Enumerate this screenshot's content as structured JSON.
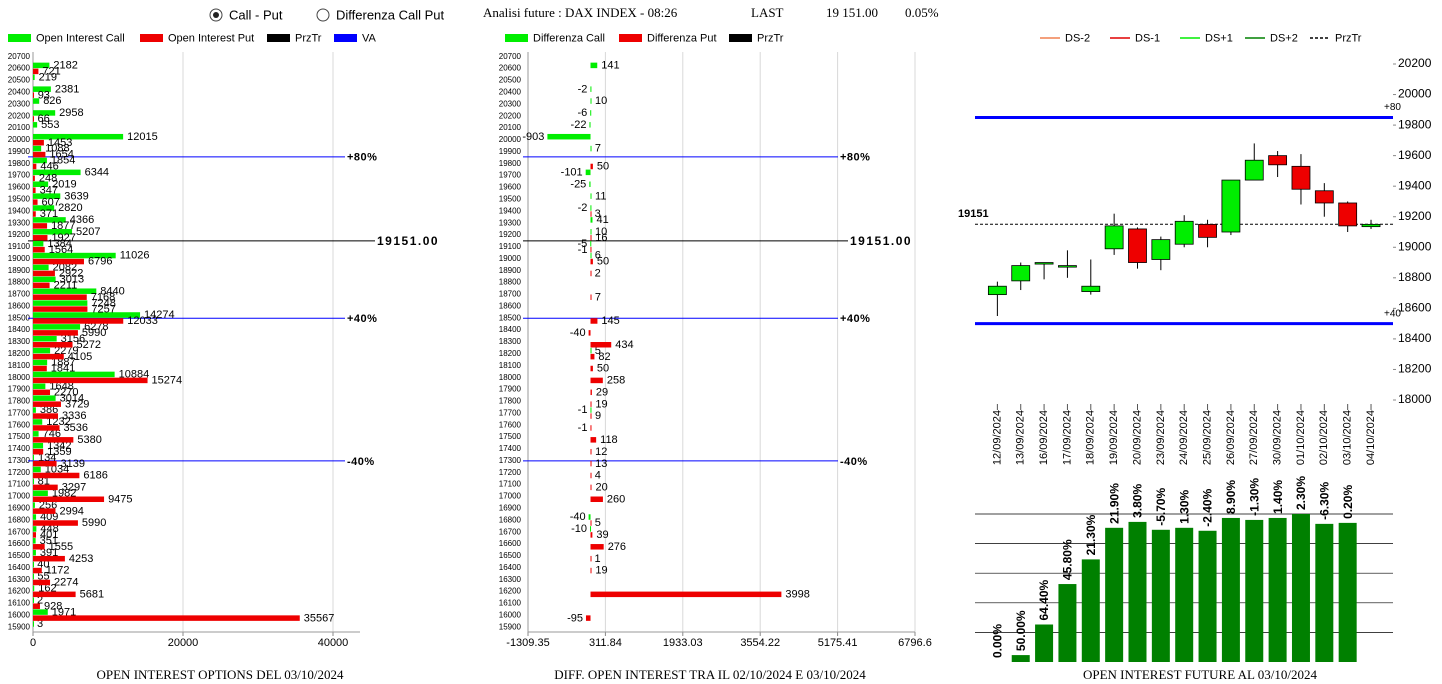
{
  "header": {
    "radio_options": [
      {
        "label": "Call - Put",
        "selected": true
      },
      {
        "label": "Differenza Call Put",
        "selected": false
      }
    ],
    "title": "Analisi future : DAX INDEX - 08:26",
    "last_label": "LAST",
    "last_value": "19 151.00",
    "change": "0.05%"
  },
  "chart_data": [
    {
      "type": "hbar",
      "title": "OPEN INTEREST OPTIONS DEL 03/10/2024",
      "categories": [
        20700,
        20600,
        20500,
        20400,
        20300,
        20200,
        20100,
        20000,
        19900,
        19800,
        19700,
        19600,
        19500,
        19400,
        19300,
        19200,
        19100,
        19000,
        18900,
        18800,
        18700,
        18600,
        18500,
        18400,
        18300,
        18200,
        18100,
        18000,
        17900,
        17800,
        17700,
        17600,
        17500,
        17400,
        17300,
        17200,
        17100,
        17000,
        16900,
        16800,
        16700,
        16600,
        16500,
        16400,
        16300,
        16200,
        16100,
        16000,
        15900
      ],
      "series": [
        {
          "name": "Open Interest Call",
          "color": "#00ee00",
          "values": [
            null,
            2182,
            219,
            2381,
            826,
            2958,
            553,
            12015,
            1088,
            1854,
            6344,
            2019,
            3639,
            2820,
            4366,
            5207,
            1384,
            11026,
            2082,
            3013,
            8440,
            7248,
            14274,
            6278,
            3156,
            2279,
            1887,
            10884,
            1648,
            3014,
            386,
            1232,
            746,
            1342,
            134,
            1034,
            81,
            1982,
            256,
            409,
            448,
            351,
            391,
            40,
            55,
            162,
            2,
            1971,
            3
          ]
        },
        {
          "name": "Open Interest Put",
          "color": "#ee0000",
          "values": [
            null,
            721,
            null,
            93,
            null,
            66,
            null,
            1453,
            1654,
            446,
            248,
            347,
            607,
            371,
            1877,
            1927,
            1564,
            6796,
            2922,
            2211,
            7168,
            7257,
            12033,
            5990,
            5272,
            4105,
            1841,
            15274,
            2270,
            3729,
            3336,
            3536,
            5380,
            1359,
            3139,
            6186,
            3297,
            9475,
            2994,
            5990,
            401,
            1555,
            4253,
            1172,
            2274,
            5681,
            928,
            35567,
            null
          ]
        }
      ],
      "legend_extra": [
        {
          "name": "PrzTr",
          "color": "#000000"
        },
        {
          "name": "VA",
          "color": "#0000ff"
        }
      ],
      "xlim": [
        0,
        43600
      ],
      "xticks": [
        0,
        20000,
        40000
      ],
      "ylim": [
        20740,
        15860
      ],
      "reference_lines": [
        {
          "value": 19858,
          "label": "+80%",
          "color": "#0000ff"
        },
        {
          "value": 19151,
          "label": "19151.00",
          "color": "#000000"
        },
        {
          "value": 18500,
          "label": "+40%",
          "color": "#0000ff"
        },
        {
          "value": 17300,
          "label": "-40%",
          "color": "#0000ff"
        }
      ]
    },
    {
      "type": "hbar",
      "title": "DIFF. OPEN INTEREST TRA IL 02/10/2024 E 03/10/2024",
      "categories": [
        20700,
        20600,
        20500,
        20400,
        20300,
        20200,
        20100,
        20000,
        19900,
        19800,
        19700,
        19600,
        19500,
        19400,
        19300,
        19200,
        19100,
        19000,
        18900,
        18800,
        18700,
        18600,
        18500,
        18400,
        18300,
        18200,
        18100,
        18000,
        17900,
        17800,
        17700,
        17600,
        17500,
        17400,
        17300,
        17200,
        17100,
        17000,
        16900,
        16800,
        16700,
        16600,
        16500,
        16400,
        16300,
        16200,
        16100,
        16000,
        15900
      ],
      "series": [
        {
          "name": "Differenza Call",
          "color": "#00ee00",
          "values": [
            null,
            141,
            null,
            -2,
            10,
            -6,
            -22,
            -903,
            7,
            null,
            -101,
            -25,
            11,
            -2,
            41,
            10,
            -5,
            6,
            null,
            null,
            null,
            null,
            null,
            null,
            null,
            5,
            null,
            null,
            null,
            null,
            -1,
            null,
            null,
            null,
            null,
            null,
            null,
            null,
            null,
            -40,
            -10,
            null,
            null,
            null,
            null,
            null,
            null,
            null,
            null
          ]
        },
        {
          "name": "Differenza Put",
          "color": "#ee0000",
          "values": [
            null,
            null,
            null,
            null,
            null,
            null,
            null,
            null,
            null,
            50,
            null,
            null,
            null,
            3,
            null,
            16,
            -1,
            50,
            2,
            null,
            7,
            null,
            145,
            -40,
            434,
            82,
            50,
            258,
            29,
            19,
            9,
            -1,
            118,
            12,
            13,
            4,
            20,
            260,
            null,
            5,
            39,
            276,
            1,
            19,
            null,
            3998,
            null,
            -95,
            null
          ]
        }
      ],
      "legend_extra": [
        {
          "name": "PrzTr",
          "color": "#000000"
        }
      ],
      "xlim": [
        -1309.35,
        6796.6
      ],
      "xticks": [
        -1309.35,
        311.84,
        1933.03,
        3554.22,
        5175.41,
        6796.6
      ],
      "ylim": [
        20740,
        15860
      ],
      "reference_lines": [
        {
          "value": 19858,
          "label": "+80%",
          "color": "#0000ff"
        },
        {
          "value": 19151,
          "label": "19151.00",
          "color": "#000000"
        },
        {
          "value": 18500,
          "label": "+40%",
          "color": "#0000ff"
        },
        {
          "value": 17300,
          "label": "-40%",
          "color": "#0000ff"
        }
      ]
    },
    {
      "type": "candlestick",
      "categories": [
        "12/09/2024",
        "13/09/2024",
        "16/09/2024",
        "17/09/2024",
        "18/09/2024",
        "19/09/2024",
        "20/09/2024",
        "23/09/2024",
        "24/09/2024",
        "25/09/2024",
        "26/09/2024",
        "27/09/2024",
        "30/09/2024",
        "01/10/2024",
        "02/10/2024",
        "03/10/2024",
        "04/10/2024"
      ],
      "open": [
        18690,
        18780,
        18890,
        18870,
        18710,
        18990,
        19120,
        18920,
        19020,
        19150,
        19100,
        19440,
        19600,
        19530,
        19370,
        19290,
        19135
      ],
      "high": [
        18775,
        18900,
        18900,
        18980,
        18920,
        19220,
        19130,
        19070,
        19210,
        19180,
        19440,
        19680,
        19630,
        19610,
        19420,
        19300,
        19180
      ],
      "low": [
        18550,
        18720,
        18790,
        18800,
        18690,
        18950,
        18860,
        18850,
        19000,
        19000,
        19080,
        19460,
        19460,
        19280,
        19200,
        19100,
        19120
      ],
      "close": [
        18745,
        18880,
        18900,
        18880,
        18745,
        19140,
        18900,
        19050,
        19170,
        19065,
        19440,
        19570,
        19540,
        19380,
        19290,
        19140,
        19150
      ],
      "up_color": "#00ee00",
      "down_color": "#ee0000",
      "ylim": [
        18000,
        20200
      ],
      "yticks": [
        18000,
        18200,
        18400,
        18600,
        18800,
        19000,
        19200,
        19400,
        19600,
        19800,
        20000,
        20200
      ],
      "legend": [
        {
          "name": "DS-2",
          "color": "#f08050"
        },
        {
          "name": "DS-1",
          "color": "#e00000"
        },
        {
          "name": "DS+1",
          "color": "#00ee00"
        },
        {
          "name": "DS+2",
          "color": "#008000"
        },
        {
          "name": "PrzTr",
          "color": "#000000",
          "style": "dashed"
        }
      ],
      "hlines": [
        {
          "value": 19850,
          "label": "+80",
          "color": "#0000ff"
        },
        {
          "value": 18500,
          "label": "+40",
          "color": "#0000ff"
        },
        {
          "value": 19151,
          "label": "19151",
          "color": "#000000",
          "style": "dashed"
        }
      ]
    },
    {
      "type": "bar",
      "title": "OPEN INTEREST FUTURE AL 03/10/2024",
      "values": [
        0,
        7,
        38,
        79,
        104,
        136,
        142,
        134,
        136,
        133,
        146,
        144,
        146,
        150,
        140,
        141
      ],
      "change_labels": [
        "0.00%",
        "50.00%",
        "64.40%",
        "45.80%",
        "21.30%",
        "21.90%",
        "3.80%",
        "-5.70%",
        "1.30%",
        "-2.40%",
        "8.90%",
        "-1.30%",
        "1.40%",
        "2.30%",
        "-6.30%",
        "0.20%"
      ],
      "color": "#008000",
      "ylim": [
        0,
        150
      ],
      "yticks": [
        30,
        60,
        90,
        120,
        150
      ],
      "grid": true
    }
  ]
}
